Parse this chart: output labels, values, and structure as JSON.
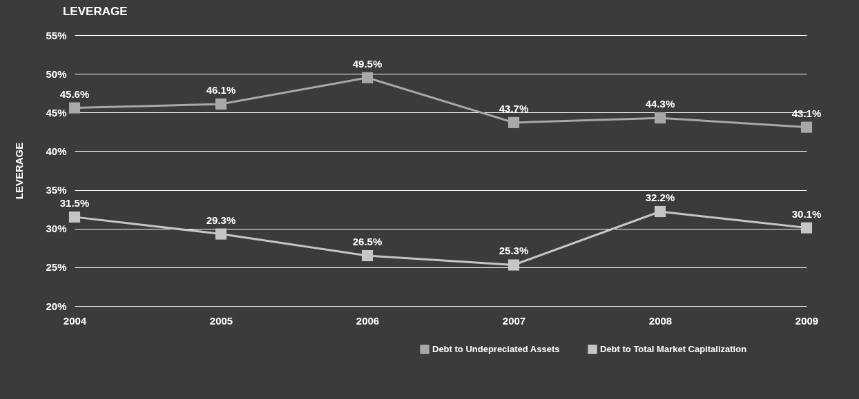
{
  "chart_data": {
    "type": "line",
    "title": "LEVERAGE",
    "ylabel": "LEVERAGE",
    "categories": [
      "2004",
      "2005",
      "2006",
      "2007",
      "2008",
      "2009"
    ],
    "series": [
      {
        "name": "Debt to Undepreciated Assets",
        "color": "#a8a8a8",
        "values": [
          45.6,
          46.1,
          49.5,
          43.7,
          44.3,
          43.1
        ],
        "value_labels": [
          "45.6%",
          "46.1%",
          "49.5%",
          "43.7%",
          "44.3%",
          "43.1%"
        ]
      },
      {
        "name": "Debt to Total Market Capitalization",
        "color": "#c6c6c6",
        "values": [
          31.5,
          29.3,
          26.5,
          25.3,
          32.2,
          30.1
        ],
        "value_labels": [
          "31.5%",
          "29.3%",
          "26.5%",
          "25.3%",
          "32.2%",
          "30.1%"
        ]
      }
    ],
    "ylim": [
      20,
      55
    ],
    "yticks": [
      {
        "value": 20,
        "label": "20%"
      },
      {
        "value": 25,
        "label": "25%"
      },
      {
        "value": 30,
        "label": "30%"
      },
      {
        "value": 35,
        "label": "35%"
      },
      {
        "value": 40,
        "label": "40%"
      },
      {
        "value": 45,
        "label": "45%"
      },
      {
        "value": 50,
        "label": "50%"
      },
      {
        "value": 55,
        "label": "55%"
      }
    ],
    "grid": "y",
    "legend": "bottom right",
    "marker": "square",
    "line_style": "solid"
  }
}
